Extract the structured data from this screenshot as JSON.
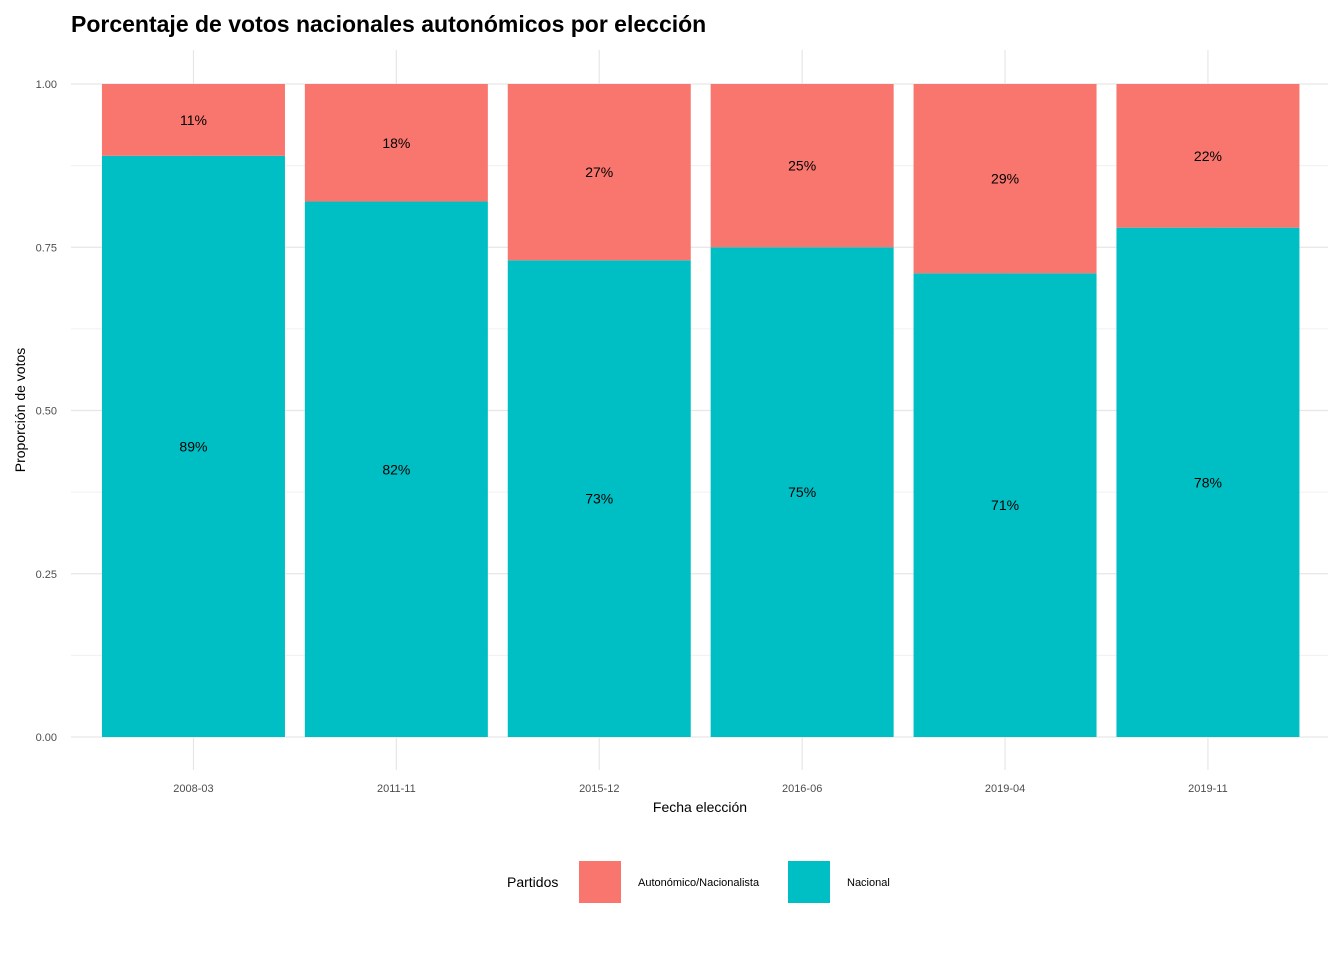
{
  "chart_data": {
    "type": "bar",
    "stacked": true,
    "title": "Porcentaje de votos nacionales autonómicos por elección",
    "xlabel": "Fecha elección",
    "ylabel": "Proporción de votos",
    "ylim": [
      0,
      1
    ],
    "yticks": [
      "0.00",
      "0.25",
      "0.50",
      "0.75",
      "1.00"
    ],
    "categories": [
      "2008-03",
      "2011-11",
      "2015-12",
      "2016-06",
      "2019-04",
      "2019-11"
    ],
    "series": [
      {
        "name": "Nacional",
        "color": "#00BFC4",
        "values": [
          0.89,
          0.82,
          0.73,
          0.75,
          0.71,
          0.78
        ],
        "labels": [
          "89%",
          "82%",
          "73%",
          "75%",
          "71%",
          "78%"
        ]
      },
      {
        "name": "Autonómico/Nacionalista",
        "color": "#F8766D",
        "values": [
          0.11,
          0.18,
          0.27,
          0.25,
          0.29,
          0.22
        ],
        "labels": [
          "11%",
          "18%",
          "27%",
          "25%",
          "29%",
          "22%"
        ]
      }
    ],
    "grid": true,
    "legend": {
      "title": "Partidos",
      "position": "bottom",
      "entries": [
        {
          "label": "Autonómico/Nacionalista",
          "color": "#F8766D"
        },
        {
          "label": "Nacional",
          "color": "#00BFC4"
        }
      ]
    }
  }
}
